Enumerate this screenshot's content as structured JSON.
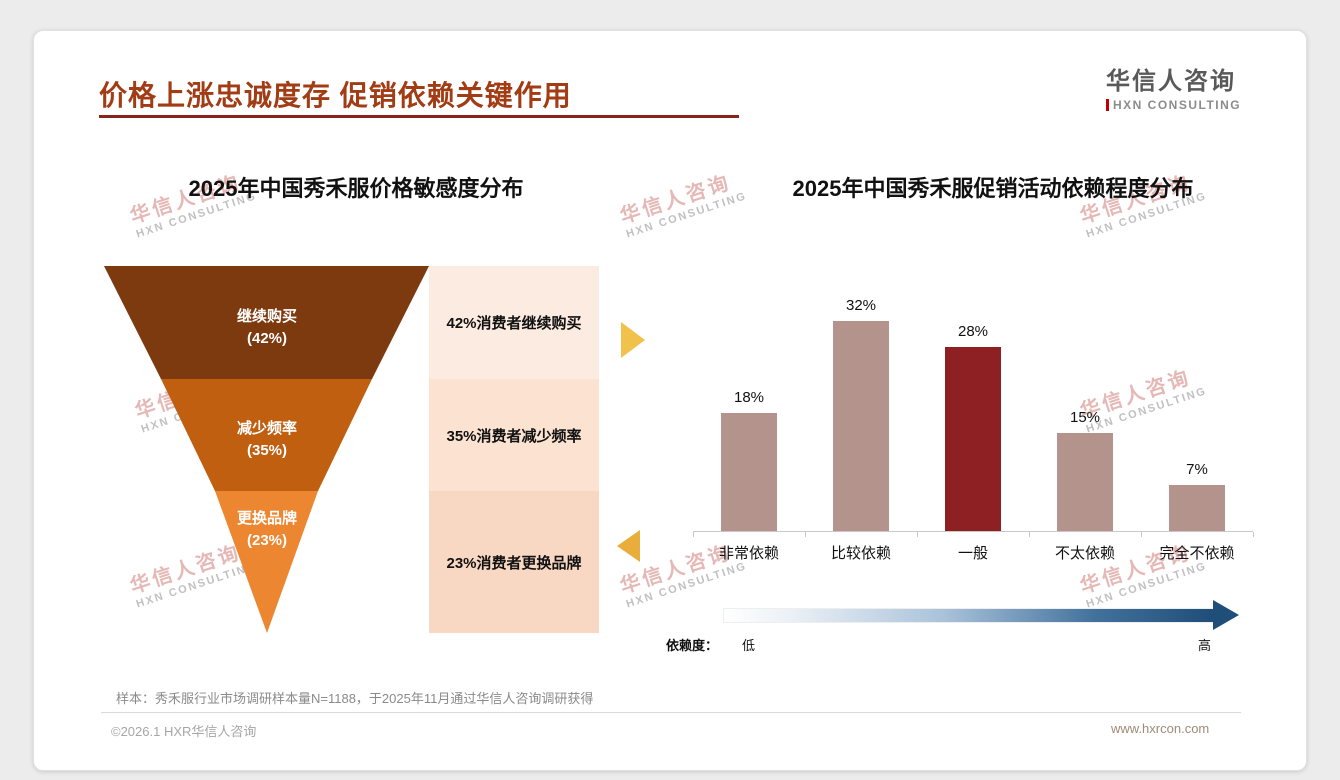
{
  "header": {
    "title": "价格上涨忠诚度存 促销依赖关键作用"
  },
  "logo": {
    "name": "华信人咨询",
    "subtitle": "HXN CONSULTING"
  },
  "watermark": {
    "line1": "华信人咨询",
    "line2": "HXN CONSULTING"
  },
  "funnel": {
    "title": "2025年中国秀禾服价格敏感度分布",
    "levels": [
      {
        "label": "继续购买",
        "pct": "(42%)",
        "note": "42%消费者继续购买",
        "color": "#7d3a0f",
        "note_bg": "#fcebe0"
      },
      {
        "label": "减少频率",
        "pct": "(35%)",
        "note": "35%消费者减少频率",
        "color": "#c05f10",
        "note_bg": "#fbe2d1"
      },
      {
        "label": "更换品牌",
        "pct": "(23%)",
        "note": "23%消费者更换品牌",
        "color": "#ec8630",
        "note_bg": "#f9d8c3"
      }
    ]
  },
  "bars": {
    "title": "2025年中国秀禾服促销活动依赖程度分布",
    "categories": [
      "非常依赖",
      "比较依赖",
      "一般",
      "不太依赖",
      "完全不依赖"
    ],
    "values": [
      18,
      32,
      28,
      15,
      7
    ],
    "value_labels": [
      "18%",
      "32%",
      "28%",
      "15%",
      "7%"
    ],
    "highlight_index": 2,
    "bar_color": "#b5938d",
    "highlight_color": "#8e1f23",
    "legend_label": "依赖度：",
    "low_label": "低",
    "high_label": "高"
  },
  "footnote": {
    "sample": "样本：秀禾服行业市场调研样本量N=1188，于2025年11月通过华信人咨询调研获得"
  },
  "footer": {
    "left": "©2026.1 HXR华信人咨询",
    "right": "www.hxrcon.com"
  },
  "chart_data": [
    {
      "type": "funnel",
      "title": "2025年中国秀禾服价格敏感度分布",
      "categories": [
        "继续购买",
        "减少频率",
        "更换品牌"
      ],
      "values": [
        42,
        35,
        23
      ],
      "unit": "%",
      "annotations": [
        "42%消费者继续购买",
        "35%消费者减少频率",
        "23%消费者更换品牌"
      ]
    },
    {
      "type": "bar",
      "title": "2025年中国秀禾服促销活动依赖程度分布",
      "categories": [
        "非常依赖",
        "比较依赖",
        "一般",
        "不太依赖",
        "完全不依赖"
      ],
      "values": [
        18,
        32,
        28,
        15,
        7
      ],
      "unit": "%",
      "ylim": [
        0,
        35
      ],
      "highlight_category": "一般",
      "xlabel": "依赖度：低→高",
      "ylabel": "",
      "grid": false,
      "legend_position": "none"
    }
  ]
}
